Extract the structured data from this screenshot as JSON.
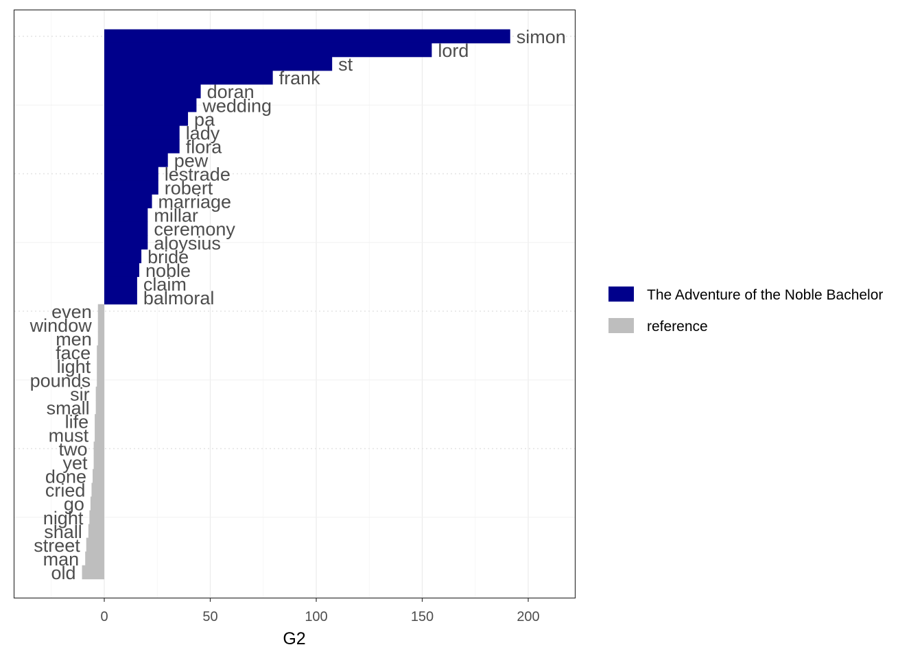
{
  "chart_data": {
    "type": "bar",
    "orientation": "horizontal",
    "xlabel": "G2",
    "ylabel": "",
    "xlim": [
      -42,
      222
    ],
    "x_ticks": [
      0,
      50,
      100,
      150,
      200
    ],
    "x_tick_labels": [
      "0",
      "50",
      "100",
      "150",
      "200"
    ],
    "grid": true,
    "legend_position": "right",
    "series": [
      {
        "name": "The Adventure of the Noble Bachelor",
        "color": "#00008B"
      },
      {
        "name": "reference",
        "color": "#BEBEBE"
      }
    ],
    "words": [
      "simon",
      "lord",
      "st",
      "frank",
      "doran",
      "wedding",
      "pa",
      "lady",
      "flora",
      "pew",
      "lestrade",
      "robert",
      "marriage",
      "millar",
      "ceremony",
      "aloysius",
      "bride",
      "noble",
      "claim",
      "balmoral",
      "even",
      "window",
      "men",
      "face",
      "light",
      "pounds",
      "sir",
      "small",
      "life",
      "must",
      "two",
      "yet",
      "done",
      "cried",
      "go",
      "night",
      "shall",
      "street",
      "man",
      "old"
    ],
    "values": [
      191.5,
      154.5,
      107.5,
      79.5,
      45.5,
      43.5,
      39.5,
      35.5,
      35.5,
      30.0,
      25.5,
      25.5,
      22.5,
      20.5,
      20.5,
      20.5,
      17.5,
      16.5,
      15.5,
      15.5,
      -3.0,
      -3.0,
      -3.0,
      -3.5,
      -3.5,
      -3.5,
      -4.0,
      -4.0,
      -4.5,
      -4.5,
      -5.0,
      -5.0,
      -5.5,
      -6.0,
      -6.5,
      -7.0,
      -7.5,
      -8.5,
      -9.0,
      -10.5
    ],
    "groups": [
      "The Adventure of the Noble Bachelor",
      "The Adventure of the Noble Bachelor",
      "The Adventure of the Noble Bachelor",
      "The Adventure of the Noble Bachelor",
      "The Adventure of the Noble Bachelor",
      "The Adventure of the Noble Bachelor",
      "The Adventure of the Noble Bachelor",
      "The Adventure of the Noble Bachelor",
      "The Adventure of the Noble Bachelor",
      "The Adventure of the Noble Bachelor",
      "The Adventure of the Noble Bachelor",
      "The Adventure of the Noble Bachelor",
      "The Adventure of the Noble Bachelor",
      "The Adventure of the Noble Bachelor",
      "The Adventure of the Noble Bachelor",
      "The Adventure of the Noble Bachelor",
      "The Adventure of the Noble Bachelor",
      "The Adventure of the Noble Bachelor",
      "The Adventure of the Noble Bachelor",
      "The Adventure of the Noble Bachelor",
      "reference",
      "reference",
      "reference",
      "reference",
      "reference",
      "reference",
      "reference",
      "reference",
      "reference",
      "reference",
      "reference",
      "reference",
      "reference",
      "reference",
      "reference",
      "reference",
      "reference",
      "reference",
      "reference",
      "reference"
    ]
  }
}
